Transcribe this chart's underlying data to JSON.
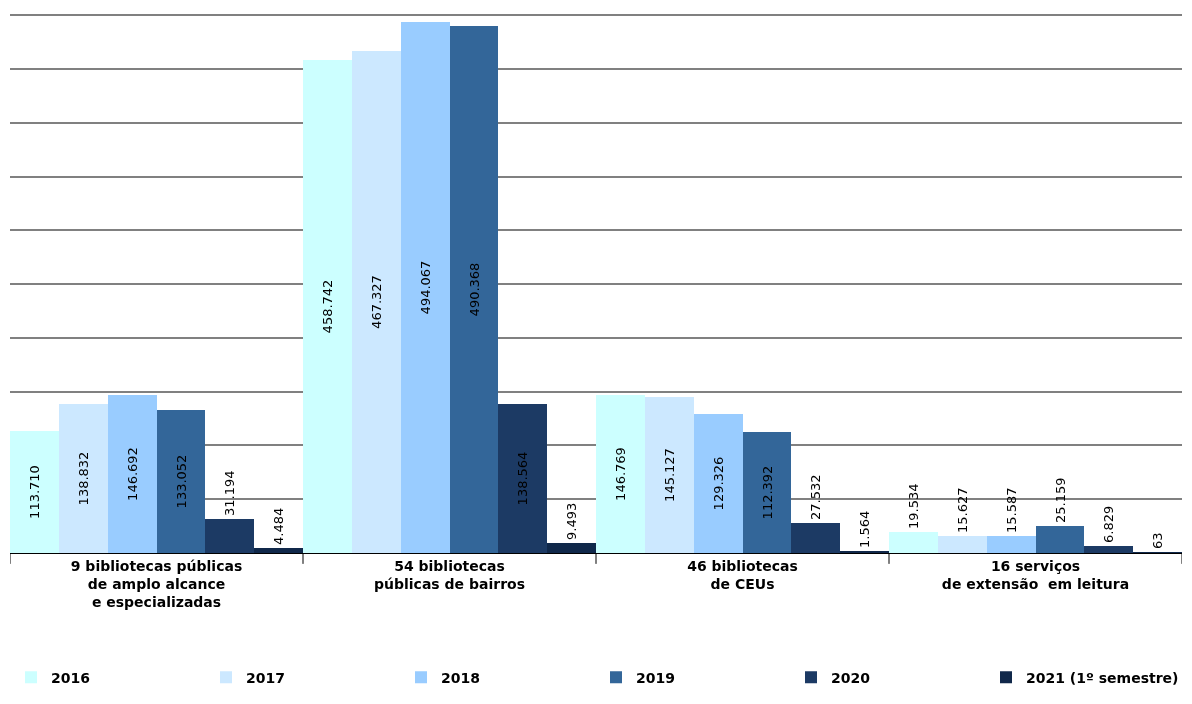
{
  "chart_data": {
    "type": "bar",
    "categories": [
      "9 bibliotecas públicas\nde amplo alcance\ne especializadas",
      "54 bibliotecas\npúblicas de bairros",
      "46 bibliotecas\nde CEUs",
      "16 serviços\nde extensão  em leitura"
    ],
    "series": [
      {
        "name": "2016",
        "color": "#ccffff",
        "values": [
          113710,
          458742,
          146769,
          19534
        ],
        "value_labels": [
          "113.710",
          "458.742",
          "146.769",
          "19.534"
        ]
      },
      {
        "name": "2017",
        "color": "#cce8ff",
        "values": [
          138832,
          467327,
          145127,
          15627
        ],
        "value_labels": [
          "138.832",
          "467.327",
          "145.127",
          "15.627"
        ]
      },
      {
        "name": "2018",
        "color": "#99ccff",
        "values": [
          146692,
          494067,
          129326,
          15587
        ],
        "value_labels": [
          "146.692",
          "494.067",
          "129.326",
          "15.587"
        ]
      },
      {
        "name": "2019",
        "color": "#336699",
        "values": [
          133052,
          490368,
          112392,
          25159
        ],
        "value_labels": [
          "133.052",
          "490.368",
          "112.392",
          "25.159"
        ]
      },
      {
        "name": "2020",
        "color": "#1c3a64",
        "values": [
          31194,
          138564,
          27532,
          6829
        ],
        "value_labels": [
          "31.194",
          "138.564",
          "27.532",
          "6.829"
        ]
      },
      {
        "name": "2021 (1º semestre)",
        "color": "#10284a",
        "values": [
          4484,
          9493,
          1564,
          63
        ],
        "value_labels": [
          "4.484",
          "9.493",
          "1.564",
          "63"
        ]
      }
    ],
    "ylim": [
      0,
      505000
    ],
    "yticks": [
      {
        "value": 0,
        "label": null
      },
      {
        "value": 50000,
        "label": null
      },
      {
        "value": 100000,
        "label": null
      },
      {
        "value": 150000,
        "label": null
      },
      {
        "value": 200000,
        "label": null
      },
      {
        "value": 250000,
        "label": null
      },
      {
        "value": 300000,
        "label": null
      },
      {
        "value": 350000,
        "label": null
      },
      {
        "value": 400000,
        "label": null
      },
      {
        "value": 450000,
        "label": null
      },
      {
        "value": 500000,
        "label": null
      }
    ],
    "tick_labels": "x",
    "grid": "y",
    "legend": "bottom"
  }
}
